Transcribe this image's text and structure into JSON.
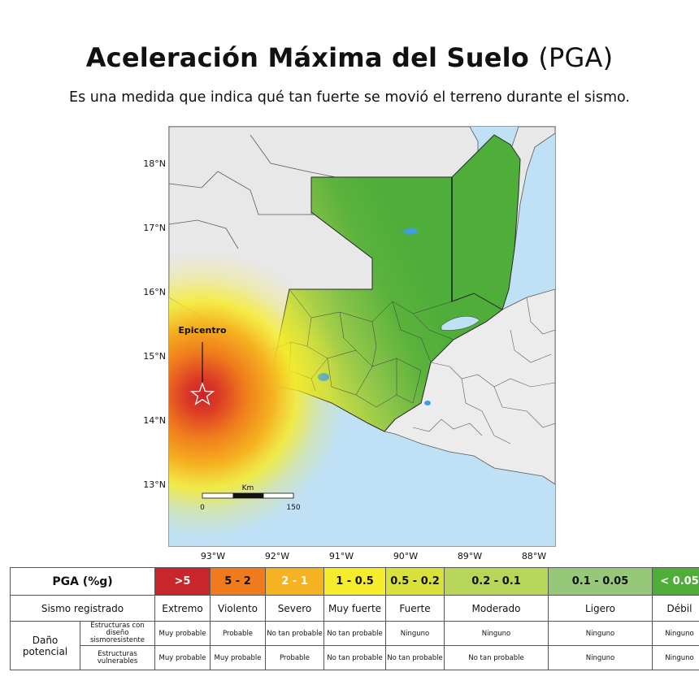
{
  "title": {
    "main": "Aceleración Máxima del Suelo",
    "paren": "(PGA)"
  },
  "subtitle": "Es una medida que indica qué tan fuerte se movió el terreno durante el sismo.",
  "map": {
    "lat_labels": [
      "18°N",
      "17°N",
      "16°N",
      "15°N",
      "14°N",
      "13°N"
    ],
    "lon_labels": [
      "93°W",
      "92°W",
      "91°W",
      "90°W",
      "89°W",
      "88°W"
    ],
    "epicenter_label": "Epicentro",
    "scale": {
      "unit": "Km",
      "start": "0",
      "end": "150"
    },
    "colors": {
      "sea": "#bfe0f5",
      "land": "#e8e8e8",
      "border": "#5a5a5a",
      "weak": "#4fae3a",
      "lake": "#3f9ee0"
    }
  },
  "legend": {
    "header": "PGA (%g)",
    "ranges": [
      {
        "label": ">5",
        "color": "#c8252c",
        "text": "#ffffff"
      },
      {
        "label": "5 - 2",
        "color": "#f07b1c",
        "text": "#111111"
      },
      {
        "label": "2 - 1",
        "color": "#f5b321",
        "text": "#ffffff"
      },
      {
        "label": "1 - 0.5",
        "color": "#f7ec2c",
        "text": "#111111"
      },
      {
        "label": "0.5 - 0.2",
        "color": "#d9e23a",
        "text": "#111111"
      },
      {
        "label": "0.2 - 0.1",
        "color": "#b7d65a",
        "text": "#111111"
      },
      {
        "label": "0.1 - 0.05",
        "color": "#97c87a",
        "text": "#111111"
      },
      {
        "label": "< 0.05",
        "color": "#4fae3a",
        "text": "#ffffff"
      }
    ],
    "sismo_label": "Sismo registrado",
    "sismo_values": [
      "Extremo",
      "Violento",
      "Severo",
      "Muy fuerte",
      "Fuerte",
      "Moderado",
      "Ligero",
      "Débil"
    ],
    "dano_label": "Daño potencial",
    "resistant_label": "Estructuras con diseño sismoresistente",
    "resistant_values": [
      "Muy probable",
      "Probable",
      "No tan probable",
      "No tan probable",
      "Ninguno",
      "Ninguno",
      "Ninguno",
      "Ninguno"
    ],
    "vulnerable_label": "Estructuras vulnerables",
    "vulnerable_values": [
      "Muy probable",
      "Muy probable",
      "Probable",
      "No tan probable",
      "No tan probable",
      "No tan probable",
      "Ninguno",
      "Ninguno"
    ]
  }
}
